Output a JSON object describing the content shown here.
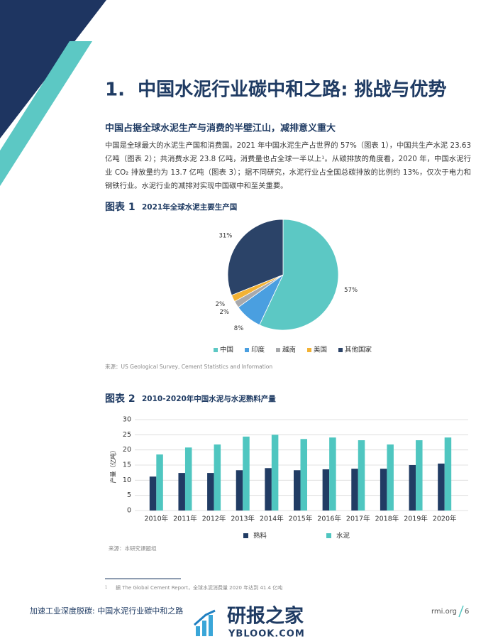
{
  "heading": "1.  中国水泥行业碳中和之路: 挑战与优势",
  "subheading": "中国占据全球水泥生产与消费的半壁江山，减排意义重大",
  "body": "中国是全球最大的水泥生产国和消费国。2021 年中国水泥生产占世界的 57%（图表 1），中国共生产水泥 23.63 亿吨（图表 2）；共消费水泥 23.8 亿吨，消费量也占全球一半以上¹。从碳排放的角度看，2020 年，中国水泥行业 CO₂ 排放量约为 13.7 亿吨（图表 3）；据不同研究，水泥行业占全国总碳排放的比例约 13%，仅次于电力和钢铁行业。水泥行业的减排对实现中国碳中和至关重要。",
  "chart_data": [
    {
      "type": "pie",
      "label": "图表 1",
      "title": "2021年全球水泥主要生产国",
      "categories": [
        "中国",
        "印度",
        "越南",
        "美国",
        "其他国家"
      ],
      "values": [
        57,
        8,
        2,
        2,
        31
      ],
      "value_labels": [
        "57%",
        "8%",
        "2%",
        "2%",
        "31%"
      ],
      "colors": [
        "#5cc8c4",
        "#4a9fe0",
        "#a7a9ac",
        "#f3b234",
        "#2b4368"
      ],
      "source": "来源：US Geological Survey, Cement Statistics and Information"
    },
    {
      "type": "bar",
      "label": "图表 2",
      "title": "2010-2020年中国水泥与水泥熟料产量",
      "categories": [
        "2010年",
        "2011年",
        "2012年",
        "2013年",
        "2014年",
        "2015年",
        "2016年",
        "2017年",
        "2018年",
        "2019年",
        "2020年"
      ],
      "series": [
        {
          "name": "熟料",
          "color": "#213c64",
          "values": [
            11.2,
            12.4,
            12.4,
            13.3,
            14.0,
            13.3,
            13.6,
            13.8,
            13.8,
            15.0,
            15.5
          ]
        },
        {
          "name": "水泥",
          "color": "#4fc6c0",
          "values": [
            18.5,
            20.8,
            21.8,
            24.4,
            25.0,
            23.6,
            24.1,
            23.2,
            21.8,
            23.2,
            24.1
          ]
        }
      ],
      "ylabel": "产量（亿吨）",
      "ylim": [
        0,
        30
      ],
      "yticks": [
        0,
        5,
        10,
        15,
        20,
        25,
        30
      ],
      "grid": true,
      "source": "来源：本研究课题组"
    }
  ],
  "footnote": {
    "mark": "1",
    "text": "据 The Global Cement Report，全球水泥消费量 2020 年达到 41.4 亿吨"
  },
  "footer": {
    "title": "加速工业深度脱碳: 中国水泥行业碳中和之路",
    "site": "rmi.org",
    "page": "6"
  },
  "watermark": {
    "name": "研报之家",
    "url": "YBLOOK.COM"
  }
}
